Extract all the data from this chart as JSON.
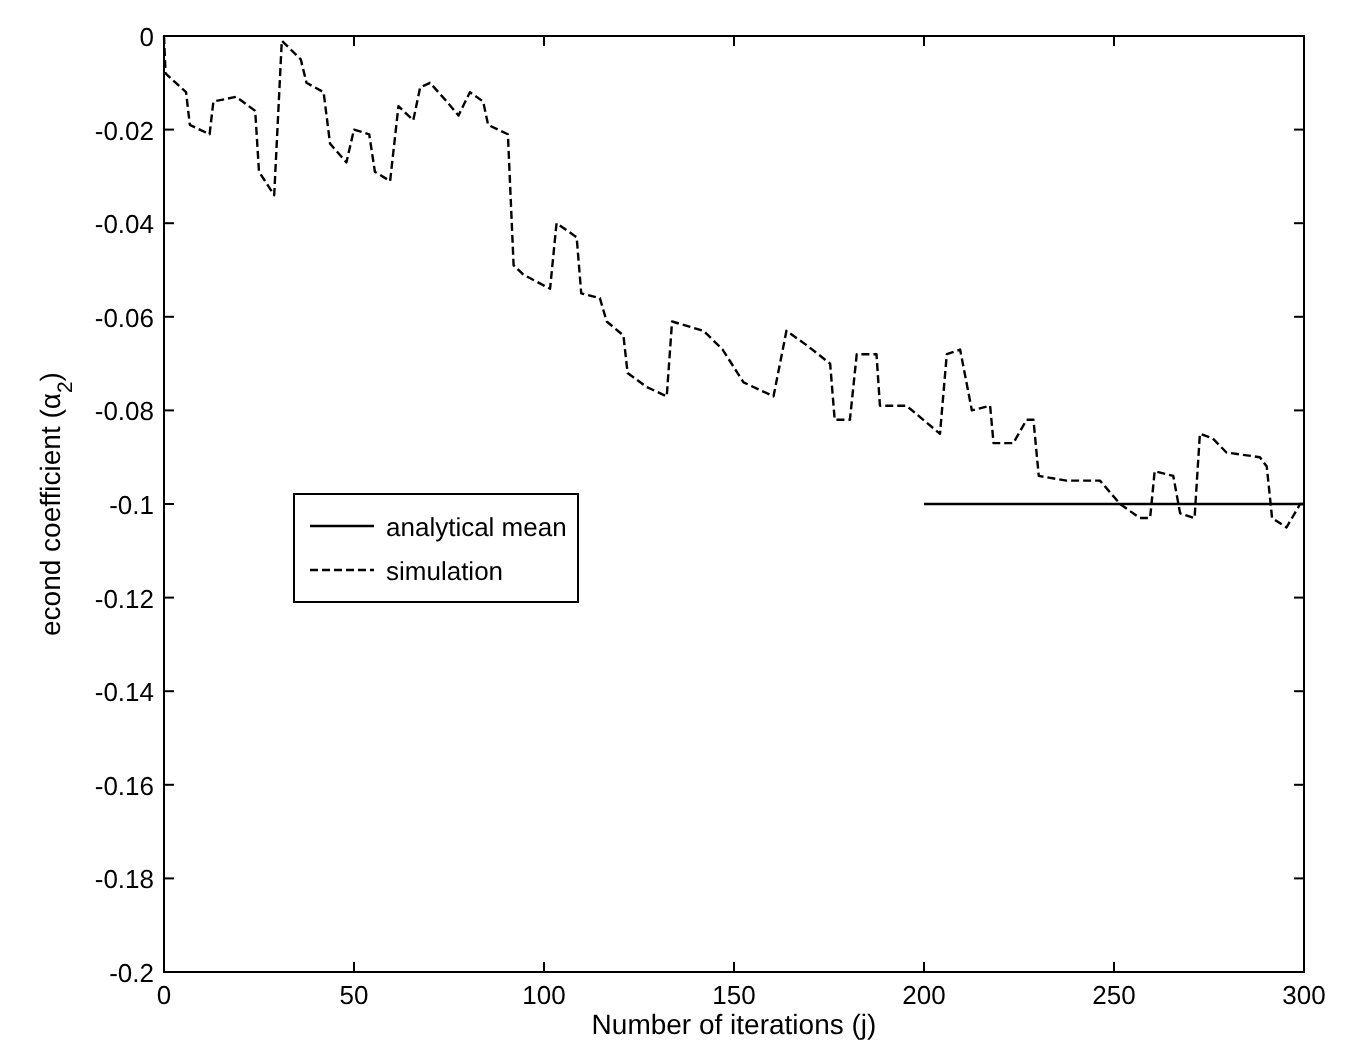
{
  "chart_data": {
    "type": "line",
    "xlabel": "Number of iterations (j)",
    "ylabel": "econd coefficient (α$_{2}$)",
    "xlim": [
      0,
      300
    ],
    "ylim": [
      -0.2,
      0
    ],
    "xticks": [
      0,
      50,
      100,
      150,
      200,
      250,
      300
    ],
    "yticks": [
      0,
      -0.02,
      -0.04,
      -0.06,
      -0.08,
      -0.1,
      -0.12,
      -0.14,
      -0.16,
      -0.18,
      -0.2
    ],
    "grid": false,
    "legend": "left",
    "series": [
      {
        "name": "analytical mean",
        "color": "#000000",
        "line_style": "solid",
        "x": [
          200,
          300
        ],
        "values": [
          -0.1,
          -0.1
        ]
      },
      {
        "name": "simulation",
        "color": "#000000",
        "line_style": "dashed",
        "x": [
          0,
          0.4,
          5.8,
          6.8,
          12,
          13,
          19,
          24,
          25,
          29,
          31,
          36,
          37.5,
          42,
          43.7,
          48,
          50,
          54,
          55.5,
          59.5,
          61.7,
          65.6,
          67.4,
          70,
          74.4,
          77.5,
          80.5,
          84,
          85.3,
          90.5,
          92,
          94.6,
          101.6,
          103.3,
          108.6,
          109.8,
          114.7,
          116.5,
          120.9,
          122,
          127,
          132.3,
          133.7,
          142,
          147,
          152.5,
          160.4,
          163.8,
          169,
          175.3,
          176.5,
          180.5,
          182.3,
          187.5,
          188.4,
          195.4,
          204.2,
          206,
          209.5,
          212.6,
          217.4,
          218.3,
          223.5,
          227,
          228.8,
          230.2,
          237.5,
          246.3,
          251.6,
          256.8,
          259.5,
          260.7,
          265.6,
          267.4,
          271.2,
          272.6,
          276,
          279.6,
          288.4,
          290.2,
          291.6,
          295.4,
          299,
          300
        ],
        "values": [
          0,
          -0.008,
          -0.012,
          -0.019,
          -0.021,
          -0.014,
          -0.013,
          -0.016,
          -0.029,
          -0.034,
          -0.001,
          -0.005,
          -0.01,
          -0.012,
          -0.023,
          -0.027,
          -0.02,
          -0.021,
          -0.029,
          -0.031,
          -0.015,
          -0.018,
          -0.011,
          -0.01,
          -0.014,
          -0.017,
          -0.012,
          -0.014,
          -0.019,
          -0.021,
          -0.049,
          -0.051,
          -0.054,
          -0.04,
          -0.043,
          -0.055,
          -0.056,
          -0.061,
          -0.064,
          -0.072,
          -0.075,
          -0.077,
          -0.061,
          -0.063,
          -0.067,
          -0.074,
          -0.077,
          -0.063,
          -0.066,
          -0.07,
          -0.082,
          -0.082,
          -0.068,
          -0.068,
          -0.079,
          -0.079,
          -0.085,
          -0.068,
          -0.067,
          -0.08,
          -0.079,
          -0.087,
          -0.087,
          -0.082,
          -0.082,
          -0.094,
          -0.095,
          -0.095,
          -0.1,
          -0.103,
          -0.103,
          -0.093,
          -0.094,
          -0.102,
          -0.103,
          -0.085,
          -0.086,
          -0.089,
          -0.09,
          -0.092,
          -0.103,
          -0.105,
          -0.1,
          -0.1
        ]
      }
    ]
  }
}
